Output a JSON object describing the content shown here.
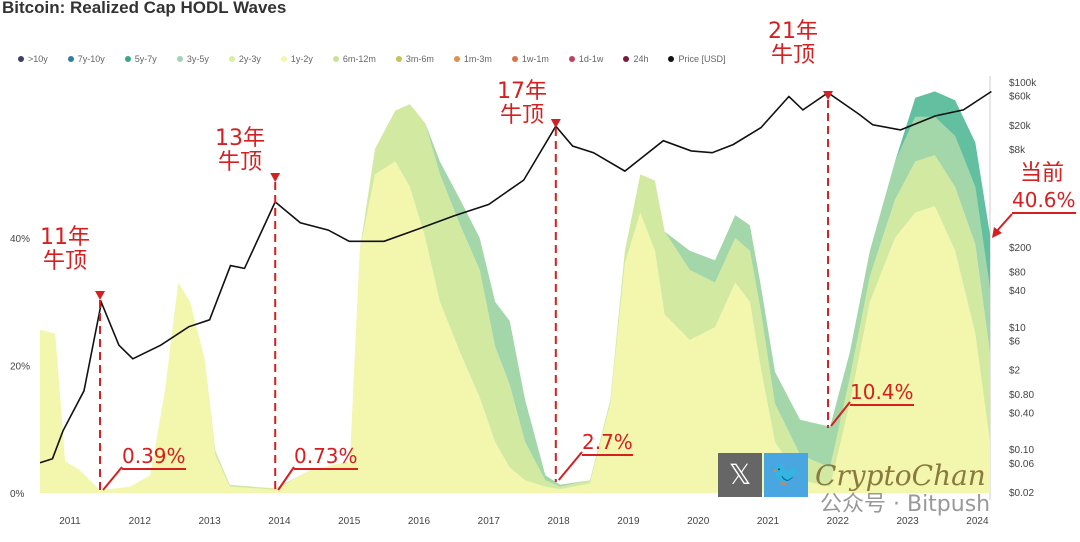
{
  "chart_data": {
    "type": "area",
    "title": "Bitcoin: Realized Cap HODL Waves",
    "legend": {
      "placement": "top",
      "items": [
        {
          "label": ">10y",
          "color": "#3d3f6b"
        },
        {
          "label": "7y-10y",
          "color": "#2f7fa0"
        },
        {
          "label": "5y-7y",
          "color": "#3aa58a"
        },
        {
          "label": "3y-5y",
          "color": "#9fd5b0"
        },
        {
          "label": "2y-3y",
          "color": "#d9eea5"
        },
        {
          "label": "1y-2y",
          "color": "#f3f6ad"
        },
        {
          "label": "6m-12m",
          "color": "#c9e49a"
        },
        {
          "label": "3m-6m",
          "color": "#c8c05a"
        },
        {
          "label": "1m-3m",
          "color": "#e0904a"
        },
        {
          "label": "1w-1m",
          "color": "#e0704a"
        },
        {
          "label": "1d-1w",
          "color": "#c04060"
        },
        {
          "label": "24h",
          "color": "#7a1a3a"
        },
        {
          "label": "Price [USD]",
          "color": "#111111"
        }
      ]
    },
    "x_ticks": [
      "2011",
      "2012",
      "2013",
      "2014",
      "2015",
      "2016",
      "2017",
      "2018",
      "2019",
      "2020",
      "2021",
      "2022",
      "2023",
      "2024"
    ],
    "xlim": [
      2010.57,
      2024.25
    ],
    "y_left": {
      "ticks": [
        "0%",
        "20%",
        "40%"
      ],
      "tick_values": [
        0,
        20,
        40
      ],
      "range": [
        0,
        65
      ]
    },
    "y_right": {
      "scale": "log",
      "ticks": [
        "$100k",
        "$60k",
        "$20k",
        "$8k",
        "$200",
        "$80",
        "$40",
        "$10",
        "$6",
        "$2",
        "$0.80",
        "$0.40",
        "$0.10",
        "$0.06",
        "$0.02"
      ],
      "tick_values": [
        100000,
        60000,
        20000,
        8000,
        200,
        80,
        40,
        10,
        6,
        2,
        0.8,
        0.4,
        0.1,
        0.06,
        0.02
      ],
      "range": [
        0.02,
        100000
      ]
    },
    "x": [
      2010.57,
      2010.79,
      2010.93,
      2011.14,
      2011.43,
      2011.86,
      2012.15,
      2012.36,
      2012.55,
      2012.72,
      2012.93,
      2013.08,
      2013.29,
      2013.94,
      2014.44,
      2015.01,
      2015.15,
      2015.37,
      2015.66,
      2015.87,
      2016.09,
      2016.3,
      2016.59,
      2016.87,
      2017.09,
      2017.3,
      2017.52,
      2017.81,
      2018.02,
      2018.45,
      2018.74,
      2018.95,
      2019.17,
      2019.38,
      2019.52,
      2019.88,
      2020.24,
      2020.53,
      2020.74,
      2020.89,
      2021.1,
      2021.46,
      2021.89,
      2022.17,
      2022.46,
      2022.82,
      2023.11,
      2023.39,
      2023.68,
      2023.97,
      2024.18
    ],
    "series": [
      {
        "name": "1y-2y",
        "color": "#f3f6ad",
        "values": [
          25.6,
          25,
          5,
          3.6,
          0.4,
          1,
          2.8,
          16,
          33,
          30,
          21,
          6,
          1,
          0.5,
          3.6,
          5,
          38,
          50,
          52,
          48,
          40,
          30,
          22,
          15,
          8,
          4,
          2,
          1,
          0.6,
          1.5,
          14,
          36,
          44,
          38,
          28,
          24,
          26,
          33,
          30,
          20,
          8,
          2,
          1,
          14,
          30,
          40,
          44,
          45,
          38,
          25,
          8
        ]
      },
      {
        "name": "2y-3y",
        "color": "#d2e9a2",
        "values": [
          0,
          0,
          0,
          0,
          0,
          0,
          0,
          0,
          0,
          0,
          0,
          0.7,
          0.3,
          0.2,
          0,
          0,
          0,
          4,
          8,
          13,
          18,
          20,
          20,
          20,
          15,
          13,
          6,
          1,
          0.4,
          0.5,
          0.6,
          2,
          6,
          11,
          13,
          11,
          7,
          7,
          8,
          9,
          6,
          4,
          3,
          4,
          4,
          6,
          8,
          8,
          10,
          14,
          14
        ]
      },
      {
        "name": "3y-5y",
        "color": "#a3d6a8",
        "values": [
          0,
          0,
          0,
          0,
          0,
          0,
          0,
          0,
          0,
          0,
          0,
          0,
          0,
          0,
          0,
          0,
          0,
          0,
          0,
          0,
          0,
          2,
          4,
          5,
          7,
          10,
          6.6,
          0.8,
          0.3,
          0,
          0,
          0,
          0,
          0,
          0,
          3,
          3.5,
          3.6,
          4,
          4,
          5,
          5.5,
          6.4,
          4,
          4,
          6,
          7,
          6,
          8,
          9,
          10
        ]
      },
      {
        "name": "5y-7y",
        "color": "#62c0a0",
        "values": [
          0,
          0,
          0,
          0,
          0,
          0,
          0,
          0,
          0,
          0,
          0,
          0,
          0,
          0,
          0,
          0,
          0,
          0,
          0,
          0,
          0,
          0,
          0,
          0,
          0,
          0,
          0,
          0,
          0,
          0,
          0,
          0,
          0,
          0,
          0,
          0,
          0,
          0,
          0,
          0,
          0,
          0,
          0,
          0,
          0,
          0,
          3,
          4,
          5.6,
          7,
          8.5
        ]
      }
    ],
    "price": {
      "name": "Price [USD]",
      "x": [
        2010.57,
        2010.75,
        2010.9,
        2011.2,
        2011.45,
        2011.7,
        2011.9,
        2012.3,
        2012.7,
        2013.0,
        2013.3,
        2013.5,
        2013.94,
        2014.3,
        2014.7,
        2015.0,
        2015.5,
        2016.0,
        2016.5,
        2017.0,
        2017.5,
        2017.96,
        2018.2,
        2018.5,
        2018.95,
        2019.5,
        2019.9,
        2020.2,
        2020.5,
        2020.9,
        2021.3,
        2021.5,
        2021.86,
        2022.3,
        2022.5,
        2022.9,
        2023.4,
        2023.8,
        2024.2
      ],
      "values": [
        0.06,
        0.07,
        0.2,
        0.9,
        25,
        5,
        3,
        5,
        10,
        13,
        100,
        90,
        1100,
        500,
        380,
        250,
        250,
        400,
        650,
        1000,
        2500,
        19000,
        9000,
        7000,
        3500,
        11000,
        7500,
        7000,
        9500,
        18000,
        58000,
        35000,
        67000,
        30000,
        20000,
        16500,
        28000,
        35000,
        70000
      ]
    },
    "annotations": [
      {
        "label": [
          "11年",
          "牛顶"
        ],
        "year": 2011.43,
        "value": "0.39%"
      },
      {
        "label": [
          "13年",
          "牛顶"
        ],
        "year": 2013.94,
        "value": "0.73%"
      },
      {
        "label": [
          "17年",
          "牛顶"
        ],
        "year": 2017.96,
        "value": "2.7%"
      },
      {
        "label": [
          "21年",
          "牛顶"
        ],
        "year": 2021.86,
        "value": "10.4%"
      },
      {
        "label": [
          "当前"
        ],
        "year": 2024.18,
        "value": "40.6%"
      }
    ]
  },
  "watermark": {
    "brand": "CryptoChan",
    "account": "公众号 · Bitpush",
    "x_logo": "𝕏",
    "bird_logo": "🐦"
  }
}
